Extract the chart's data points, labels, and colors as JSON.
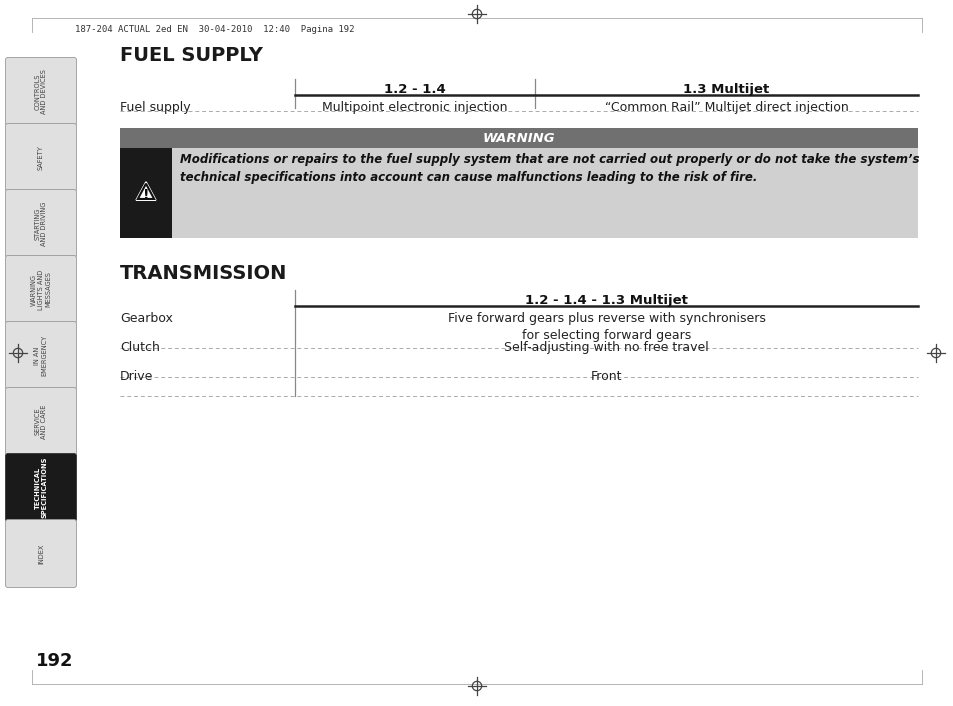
{
  "page_header": "187-204 ACTUAL 2ed EN  30-04-2010  12:40  Pagina 192",
  "page_number": "192",
  "fuel_supply_title": "FUEL SUPPLY",
  "fs_col1_header": "1.2 - 1.4",
  "fs_col2_header": "1.3 Multijet",
  "fs_row1_label": "Fuel supply",
  "fs_row1_col1": "Multipoint electronic injection",
  "fs_row1_col2": "“Common Rail” Multijet direct injection",
  "warning_title": "WARNING",
  "warning_text": "Modifications or repairs to the fuel supply system that are not carried out properly or do not take the system’s\ntechnical specifications into account can cause malfunctions leading to the risk of fire.",
  "transmission_title": "TRANSMISSION",
  "tr_col_header": "1.2 - 1.4 - 1.3 Multijet",
  "tr_rows": [
    {
      "label": "Gearbox",
      "value": "Five forward gears plus reverse with synchronisers\nfor selecting forward gears"
    },
    {
      "label": "Clutch",
      "value": "Self-adjusting with no free travel"
    },
    {
      "label": "Drive",
      "value": "Front"
    }
  ],
  "sidebar_tabs": [
    {
      "text": "CONTROLS\nAND DEVICES",
      "active": false
    },
    {
      "text": "SAFETY",
      "active": false
    },
    {
      "text": "STARTING\nAND DRIVING",
      "active": false
    },
    {
      "text": "WARNING\nLIGHTS AND\nMESSAGES",
      "active": false
    },
    {
      "text": "IN AN\nEMERGENCY",
      "active": false
    },
    {
      "text": "SERVICE\nAND CARE",
      "active": false
    },
    {
      "text": "TECHNICAL\nSPECIFICATIONS",
      "active": true
    },
    {
      "text": "INDEX",
      "active": false
    }
  ],
  "bg_color": "#ffffff",
  "sidebar_bg": "#e0e0e0",
  "sidebar_active_bg": "#1a1a1a",
  "sidebar_text_color": "#444444",
  "sidebar_active_text": "#ffffff",
  "warning_header_bg": "#707070",
  "warning_icon_bg": "#1a1a1a",
  "warning_box_bg": "#d0d0d0",
  "header_line_color": "#222222",
  "dotted_line_color": "#aaaaaa",
  "title_color": "#1a1a1a",
  "text_color": "#222222"
}
